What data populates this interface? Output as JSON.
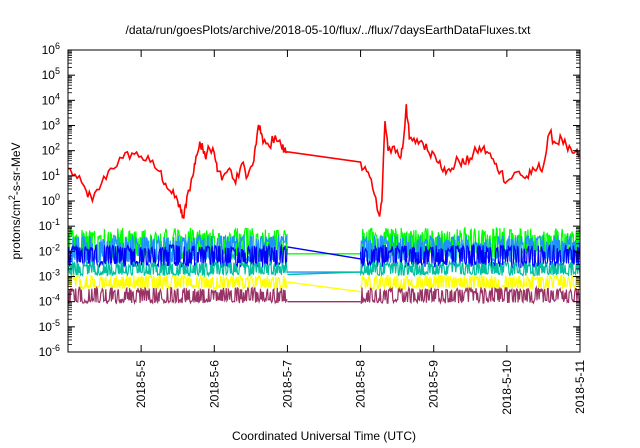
{
  "chart_data": {
    "type": "line",
    "title": "/data/run/goesPlots/archive/2018-05-10/flux/../flux/7daysEarthDataFluxes.txt",
    "xlabel": "Coordinated Universal Time (UTC)",
    "ylabel": {
      "prefix": "protons/cm",
      "sup": "2",
      "suffix": "-s-sr-MeV"
    },
    "y_scale": "log",
    "ylim": [
      1e-06,
      1000000.0
    ],
    "y_ticks": [
      {
        "exp": "-6",
        "value": 1e-06
      },
      {
        "exp": "-5",
        "value": 1e-05
      },
      {
        "exp": "-4",
        "value": 0.0001
      },
      {
        "exp": "-3",
        "value": 0.001
      },
      {
        "exp": "-2",
        "value": 0.01
      },
      {
        "exp": "-1",
        "value": 0.1
      },
      {
        "exp": "0",
        "value": 1
      },
      {
        "exp": "1",
        "value": 10
      },
      {
        "exp": "2",
        "value": 100
      },
      {
        "exp": "3",
        "value": 1000
      },
      {
        "exp": "4",
        "value": 10000
      },
      {
        "exp": "5",
        "value": 100000
      },
      {
        "exp": "6",
        "value": 1000000
      }
    ],
    "xlim": [
      "2018-05-04",
      "2018-05-11"
    ],
    "x_ticks": [
      "2018-5-5",
      "2018-5-6",
      "2018-5-7",
      "2018-5-8",
      "2018-5-9",
      "2018-5-10",
      "2018-5-11"
    ],
    "grid": false,
    "legend": "none",
    "series": [
      {
        "color": "#ff0000",
        "style": "line",
        "points": [
          [
            "2018-05-04T00:00",
            20
          ],
          [
            "2018-05-04T03:00",
            8
          ],
          [
            "2018-05-04T06:00",
            2.5
          ],
          [
            "2018-05-04T08:00",
            1
          ],
          [
            "2018-05-04T11:00",
            5
          ],
          [
            "2018-05-04T14:00",
            20
          ],
          [
            "2018-05-04T18:00",
            50
          ],
          [
            "2018-05-04T21:00",
            80
          ],
          [
            "2018-05-05T00:00",
            60
          ],
          [
            "2018-05-05T03:00",
            35
          ],
          [
            "2018-05-05T06:00",
            15
          ],
          [
            "2018-05-05T08:00",
            5
          ],
          [
            "2018-05-05T10:00",
            2
          ],
          [
            "2018-05-05T12:00",
            1
          ],
          [
            "2018-05-05T13:00",
            0.4
          ],
          [
            "2018-05-05T14:00",
            0.2
          ],
          [
            "2018-05-05T15:00",
            1.5
          ],
          [
            "2018-05-05T17:00",
            10
          ],
          [
            "2018-05-05T18:00",
            60
          ],
          [
            "2018-05-05T19:00",
            130
          ],
          [
            "2018-05-05T20:00",
            200
          ],
          [
            "2018-05-05T21:00",
            60
          ],
          [
            "2018-05-05T22:00",
            150
          ],
          [
            "2018-05-06T00:00",
            80
          ],
          [
            "2018-05-06T01:00",
            15
          ],
          [
            "2018-05-06T03:00",
            10
          ],
          [
            "2018-05-06T05:00",
            20
          ],
          [
            "2018-05-06T07:00",
            5
          ],
          [
            "2018-05-06T09:00",
            30
          ],
          [
            "2018-05-06T11:00",
            10
          ],
          [
            "2018-05-06T13:00",
            40
          ],
          [
            "2018-05-06T14:00",
            400
          ],
          [
            "2018-05-06T15:00",
            1000
          ],
          [
            "2018-05-06T16:00",
            200
          ],
          [
            "2018-05-06T18:00",
            150
          ],
          [
            "2018-05-06T20:00",
            400
          ],
          [
            "2018-05-06T22:00",
            150
          ],
          [
            "2018-05-06T23:00",
            100
          ],
          [
            "2018-05-07T00:00",
            90
          ],
          [
            "2018-05-08T00:00",
            35
          ],
          [
            "2018-05-08T02:00",
            15
          ],
          [
            "2018-05-08T04:00",
            3
          ],
          [
            "2018-05-08T06:00",
            0.3
          ],
          [
            "2018-05-08T07:00",
            1
          ],
          [
            "2018-05-08T08:00",
            1500
          ],
          [
            "2018-05-08T09:00",
            100
          ],
          [
            "2018-05-08T11:00",
            150
          ],
          [
            "2018-05-08T13:00",
            50
          ],
          [
            "2018-05-08T14:00",
            200
          ],
          [
            "2018-05-08T15:00",
            7000
          ],
          [
            "2018-05-08T16:00",
            300
          ],
          [
            "2018-05-08T18:00",
            200
          ],
          [
            "2018-05-08T20:00",
            250
          ],
          [
            "2018-05-08T22:00",
            100
          ],
          [
            "2018-05-09T00:00",
            80
          ],
          [
            "2018-05-09T02:00",
            40
          ],
          [
            "2018-05-09T04:00",
            12
          ],
          [
            "2018-05-09T06:00",
            20
          ],
          [
            "2018-05-09T08:00",
            45
          ],
          [
            "2018-05-09T10:00",
            30
          ],
          [
            "2018-05-09T12:00",
            50
          ],
          [
            "2018-05-09T14:00",
            100
          ],
          [
            "2018-05-09T16:00",
            120
          ],
          [
            "2018-05-09T18:00",
            80
          ],
          [
            "2018-05-09T20:00",
            30
          ],
          [
            "2018-05-09T22:00",
            15
          ],
          [
            "2018-05-10T00:00",
            6
          ],
          [
            "2018-05-10T02:00",
            10
          ],
          [
            "2018-05-10T04:00",
            15
          ],
          [
            "2018-05-10T06:00",
            8
          ],
          [
            "2018-05-10T08:00",
            12
          ],
          [
            "2018-05-10T10:00",
            20
          ],
          [
            "2018-05-10T12:00",
            25
          ],
          [
            "2018-05-10T14:00",
            500
          ],
          [
            "2018-05-10T16:00",
            200
          ],
          [
            "2018-05-10T18:00",
            300
          ],
          [
            "2018-05-10T20:00",
            100
          ],
          [
            "2018-05-10T22:00",
            80
          ],
          [
            "2018-05-11T00:00",
            70
          ]
        ]
      },
      {
        "color": "#00ff00",
        "style": "noisy_band",
        "segments": [
          {
            "start": "2018-05-04T00:00",
            "end": "2018-05-07T00:00",
            "low": 0.004,
            "high": 0.1
          },
          {
            "start": "2018-05-08T00:00",
            "end": "2018-05-11T00:00",
            "low": 0.005,
            "high": 0.1
          }
        ],
        "gap_line": [
          [
            "2018-05-07T00:00",
            0.008
          ],
          [
            "2018-05-08T00:00",
            0.008
          ]
        ]
      },
      {
        "color": "#1e90ff",
        "style": "noisy_band",
        "segments": [
          {
            "start": "2018-05-04T00:00",
            "end": "2018-05-07T00:00",
            "low": 0.003,
            "high": 0.05
          },
          {
            "start": "2018-05-08T00:00",
            "end": "2018-05-11T00:00",
            "low": 0.003,
            "high": 0.05
          }
        ],
        "gap_line": [
          [
            "2018-05-07T00:00",
            0.0015
          ],
          [
            "2018-05-08T00:00",
            0.0015
          ]
        ]
      },
      {
        "color": "#0000ff",
        "style": "noisy_band",
        "segments": [
          {
            "start": "2018-05-04T00:00",
            "end": "2018-05-07T00:00",
            "low": 0.002,
            "high": 0.02
          },
          {
            "start": "2018-05-08T00:00",
            "end": "2018-05-11T00:00",
            "low": 0.002,
            "high": 0.02
          }
        ],
        "gap_line": [
          [
            "2018-05-07T00:00",
            0.015
          ],
          [
            "2018-05-08T00:00",
            0.005
          ]
        ]
      },
      {
        "color": "#00c0a0",
        "style": "noisy_band",
        "segments": [
          {
            "start": "2018-05-04T00:00",
            "end": "2018-05-07T00:00",
            "low": 0.001,
            "high": 0.004
          },
          {
            "start": "2018-05-08T00:00",
            "end": "2018-05-11T00:00",
            "low": 0.001,
            "high": 0.004
          }
        ],
        "gap_line": [
          [
            "2018-05-07T00:00",
            0.0012
          ],
          [
            "2018-05-08T00:00",
            0.0015
          ]
        ]
      },
      {
        "color": "#ffff00",
        "style": "noisy_band",
        "segments": [
          {
            "start": "2018-05-04T00:00",
            "end": "2018-05-07T00:00",
            "low": 0.0003,
            "high": 0.0012
          },
          {
            "start": "2018-05-08T00:00",
            "end": "2018-05-11T00:00",
            "low": 0.0003,
            "high": 0.0012
          }
        ],
        "gap_line": [
          [
            "2018-05-07T00:00",
            0.0006
          ],
          [
            "2018-05-08T00:00",
            0.00025
          ]
        ]
      },
      {
        "color": "#993366",
        "style": "noisy_band",
        "segments": [
          {
            "start": "2018-05-04T00:00",
            "end": "2018-05-07T00:00",
            "low": 8e-05,
            "high": 0.0004
          },
          {
            "start": "2018-05-08T00:00",
            "end": "2018-05-11T00:00",
            "low": 8e-05,
            "high": 0.0004
          }
        ],
        "gap_line": [
          [
            "2018-05-07T00:00",
            0.0001
          ],
          [
            "2018-05-08T00:00",
            0.0001
          ]
        ]
      }
    ]
  }
}
